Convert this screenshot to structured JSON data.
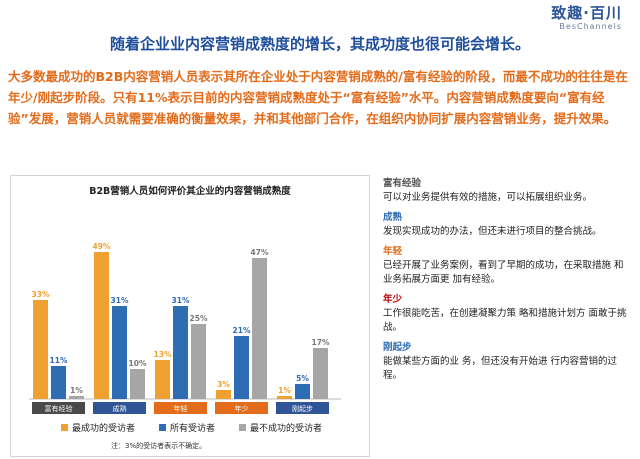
{
  "logo": {
    "main": "致趣·百川",
    "sub": "BesChannels"
  },
  "title": "随着企业业内容营销成熟度的增长，其成功度也很可能会增长。",
  "intro": "大多数最成功的B2B内容营销人员表示其所在企业处于内容营销成熟的/富有经验的阶段，而最不成功的往往是在年少/刚起步阶段。只有11%表示目前的内容营销成熟度处于“富有经验”水平。内容营销成熟度要向“富有经验”发展，营销人员就需要准确的衡量效果，并和其他部门合作，在组织内协同扩展内容营销业务，提升效果。",
  "colors": {
    "accent": "#e36c1b",
    "title": "#1f4e9a",
    "cat_bg": "#4a4a4a",
    "cat_highlight": "#2f5597"
  },
  "chart_data": {
    "type": "bar",
    "title": "B2B营销人员如何评价其企业的内容营销成熟度",
    "categories": [
      "富有经验",
      "成熟",
      "年轻",
      "年少",
      "刚起步"
    ],
    "category_colors": [
      "#4a4a4a",
      "#2f5597",
      "#e36c1b",
      "#e36c1b",
      "#2f5597"
    ],
    "series": [
      {
        "name": "最成功的受访者",
        "color": "#f0a030",
        "values": [
          33,
          49,
          13,
          3,
          1
        ]
      },
      {
        "name": "所有受访者",
        "color": "#2e6db4",
        "values": [
          11,
          31,
          31,
          21,
          5
        ]
      },
      {
        "name": "最不成功的受访者",
        "color": "#a6a6a6",
        "values": [
          1,
          10,
          25,
          47,
          17
        ]
      }
    ],
    "value_labels": [
      [
        "33%",
        "49%",
        "13%",
        "3%",
        "1%"
      ],
      [
        "11%",
        "31%",
        "31%",
        "21%",
        "5%"
      ],
      [
        "1%",
        "10%",
        "25%",
        "47%",
        "17%"
      ]
    ],
    "ylim": [
      0,
      50
    ],
    "grid": false,
    "legend_position": "bottom",
    "footnote": "注：3%的受访者表示不确定。"
  },
  "definitions": [
    {
      "term": "富有经验",
      "desc": "可以对业务提供有效的措施，可以拓展组织业务。",
      "color": "#555555"
    },
    {
      "term": "成熟",
      "desc": "发现实现成功的办法，但还未进行项目的整合挑战。",
      "color": "#2e6db4"
    },
    {
      "term": "年轻",
      "desc": "已经开展了业务案例，看到了早期的成功，在采取措施 和业务拓展方面更 加有经验。",
      "color": "#e36c1b"
    },
    {
      "term": "年少",
      "desc": "工作很能吃苦，在创建凝聚力策 略和措施计划方 面敢于挑战。",
      "color": "#c00000"
    },
    {
      "term": "刚起步",
      "desc": "能做某些方面的业 务，但还没有开始进 行内容营销的过程。",
      "color": "#2e6db4"
    }
  ]
}
